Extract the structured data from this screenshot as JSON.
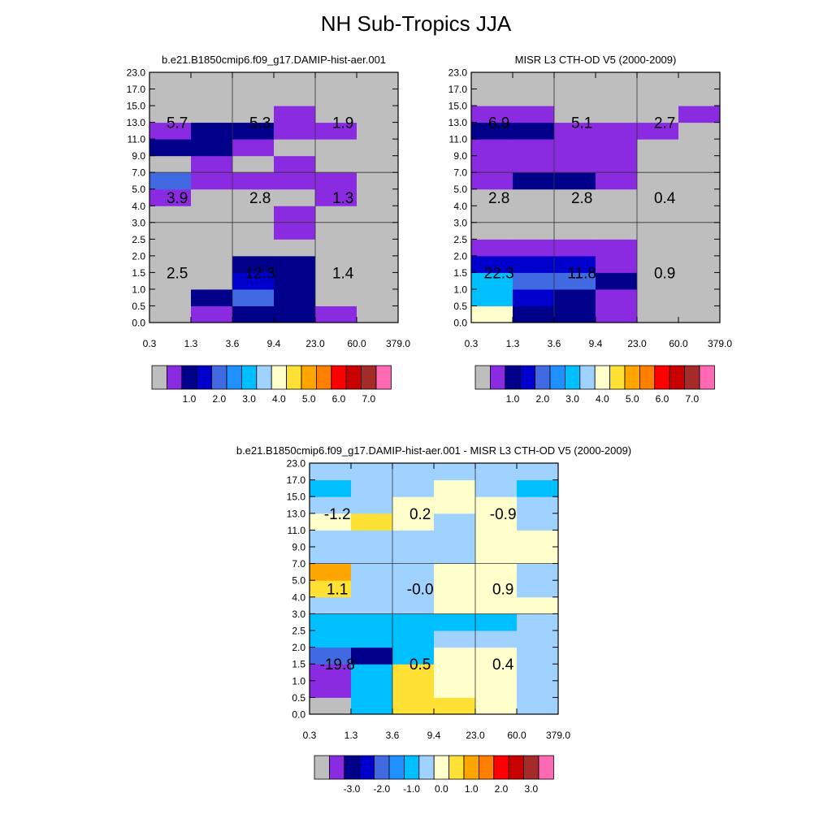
{
  "figure": {
    "title": "NH Sub-Tropics JJA"
  },
  "colors": {
    "palette": [
      "#BEBEBE",
      "#8A2BE2",
      "#00008B",
      "#0000CD",
      "#4169E1",
      "#1E90FF",
      "#00BFFF",
      "#A0D2FF",
      "#FFFFCC",
      "#FFE135",
      "#FFA500",
      "#FF7F00",
      "#FF0000",
      "#C80000",
      "#A52A2A",
      "#FF69B4"
    ],
    "grid_line": "#333333"
  },
  "chart_data": [
    {
      "type": "heatmap",
      "id": "model",
      "title": "b.e21.B1850cmip6.f09_g17.DAMIP-hist-aer.001",
      "x_ticks": [
        "0.3",
        "1.3",
        "3.6",
        "9.4",
        "23.0",
        "60.0",
        "379.0"
      ],
      "y_ticks": [
        "0.0",
        "0.5",
        "1.0",
        "1.5",
        "2.0",
        "2.5",
        "3.0",
        "4.0",
        "5.0",
        "7.0",
        "9.0",
        "11.0",
        "13.0",
        "15.0",
        "17.0",
        "23.0"
      ],
      "grid": true,
      "cell_colors": [
        [
          0,
          1,
          2,
          2,
          1,
          0
        ],
        [
          0,
          2,
          4,
          2,
          0,
          0
        ],
        [
          0,
          0,
          3,
          2,
          0,
          0
        ],
        [
          0,
          0,
          2,
          2,
          0,
          0
        ],
        [
          0,
          0,
          0,
          0,
          0,
          0
        ],
        [
          0,
          0,
          0,
          1,
          0,
          0
        ],
        [
          0,
          0,
          0,
          1,
          0,
          0
        ],
        [
          1,
          0,
          0,
          0,
          1,
          0
        ],
        [
          4,
          1,
          1,
          1,
          1,
          0
        ],
        [
          0,
          1,
          0,
          1,
          0,
          0
        ],
        [
          2,
          2,
          1,
          0,
          0,
          0
        ],
        [
          1,
          2,
          2,
          1,
          1,
          0
        ],
        [
          0,
          0,
          0,
          1,
          0,
          0
        ],
        [
          0,
          0,
          0,
          0,
          0,
          0
        ],
        [
          0,
          0,
          0,
          0,
          0,
          0
        ]
      ],
      "annotations": [
        {
          "x": 0.67,
          "y": 12.0,
          "text": "5.7"
        },
        {
          "x": 2.67,
          "y": 12.0,
          "text": "5.3"
        },
        {
          "x": 4.67,
          "y": 12.0,
          "text": "1.9"
        },
        {
          "x": 0.67,
          "y": 7.5,
          "text": "3.9"
        },
        {
          "x": 2.67,
          "y": 7.5,
          "text": "2.8"
        },
        {
          "x": 4.67,
          "y": 7.5,
          "text": "1.3"
        },
        {
          "x": 0.67,
          "y": 3.0,
          "text": "2.5"
        },
        {
          "x": 2.67,
          "y": 3.0,
          "text": "12.3"
        },
        {
          "x": 4.67,
          "y": 3.0,
          "text": "1.4"
        }
      ],
      "colorbar_labels": [
        "1.0",
        "2.0",
        "3.0",
        "4.0",
        "5.0",
        "6.0",
        "7.0"
      ]
    },
    {
      "type": "heatmap",
      "id": "obs",
      "title": "MISR L3 CTH-OD V5 (2000-2009)",
      "x_ticks": [
        "0.3",
        "1.3",
        "3.6",
        "9.4",
        "23.0",
        "60.0",
        "379.0"
      ],
      "y_ticks": [
        "0.0",
        "0.5",
        "1.0",
        "1.5",
        "2.0",
        "2.5",
        "3.0",
        "4.0",
        "5.0",
        "7.0",
        "9.0",
        "11.0",
        "13.0",
        "15.0",
        "17.0",
        "23.0"
      ],
      "grid": true,
      "cell_colors": [
        [
          8,
          2,
          2,
          1,
          0,
          0
        ],
        [
          6,
          3,
          2,
          1,
          0,
          0
        ],
        [
          6,
          4,
          4,
          2,
          0,
          0
        ],
        [
          3,
          3,
          3,
          1,
          0,
          0
        ],
        [
          1,
          1,
          1,
          1,
          0,
          0
        ],
        [
          0,
          0,
          0,
          0,
          0,
          0
        ],
        [
          0,
          0,
          0,
          0,
          0,
          0
        ],
        [
          0,
          0,
          0,
          0,
          0,
          0
        ],
        [
          1,
          2,
          2,
          1,
          0,
          0
        ],
        [
          1,
          1,
          1,
          1,
          0,
          0
        ],
        [
          1,
          1,
          1,
          1,
          0,
          0
        ],
        [
          2,
          2,
          1,
          1,
          1,
          0
        ],
        [
          1,
          1,
          0,
          0,
          0,
          1
        ],
        [
          0,
          0,
          0,
          0,
          0,
          0
        ],
        [
          0,
          0,
          0,
          0,
          0,
          0
        ]
      ],
      "annotations": [
        {
          "x": 0.67,
          "y": 12.0,
          "text": "6.9"
        },
        {
          "x": 2.67,
          "y": 12.0,
          "text": "5.1"
        },
        {
          "x": 4.67,
          "y": 12.0,
          "text": "2.7"
        },
        {
          "x": 0.67,
          "y": 7.5,
          "text": "2.8"
        },
        {
          "x": 2.67,
          "y": 7.5,
          "text": "2.8"
        },
        {
          "x": 4.67,
          "y": 7.5,
          "text": "0.4"
        },
        {
          "x": 0.67,
          "y": 3.0,
          "text": "22.3"
        },
        {
          "x": 2.67,
          "y": 3.0,
          "text": "11.8"
        },
        {
          "x": 4.67,
          "y": 3.0,
          "text": "0.9"
        }
      ],
      "colorbar_labels": [
        "1.0",
        "2.0",
        "3.0",
        "4.0",
        "5.0",
        "6.0",
        "7.0"
      ]
    },
    {
      "type": "heatmap",
      "id": "difference",
      "title": "b.e21.B1850cmip6.f09_g17.DAMIP-hist-aer.001 - MISR L3 CTH-OD V5 (2000-2009)",
      "x_ticks": [
        "0.3",
        "1.3",
        "3.6",
        "9.4",
        "23.0",
        "60.0",
        "379.0"
      ],
      "y_ticks": [
        "0.0",
        "0.5",
        "1.0",
        "1.5",
        "2.0",
        "2.5",
        "3.0",
        "4.0",
        "5.0",
        "7.0",
        "9.0",
        "11.0",
        "13.0",
        "15.0",
        "17.0",
        "23.0"
      ],
      "grid": true,
      "cell_colors": [
        [
          0,
          6,
          9,
          9,
          8,
          7
        ],
        [
          1,
          6,
          9,
          8,
          8,
          7
        ],
        [
          1,
          6,
          9,
          8,
          8,
          7
        ],
        [
          4,
          2,
          6,
          8,
          8,
          7
        ],
        [
          6,
          6,
          6,
          7,
          7,
          7
        ],
        [
          6,
          6,
          6,
          6,
          6,
          7
        ],
        [
          7,
          7,
          7,
          8,
          8,
          8
        ],
        [
          9,
          7,
          7,
          8,
          8,
          7
        ],
        [
          10,
          7,
          7,
          8,
          8,
          7
        ],
        [
          7,
          7,
          7,
          7,
          8,
          8
        ],
        [
          7,
          7,
          7,
          7,
          8,
          8
        ],
        [
          8,
          9,
          8,
          7,
          8,
          7
        ],
        [
          7,
          7,
          8,
          8,
          8,
          7
        ],
        [
          6,
          7,
          7,
          8,
          7,
          6
        ],
        [
          7,
          7,
          7,
          7,
          7,
          7
        ]
      ],
      "annotations": [
        {
          "x": 0.67,
          "y": 12.0,
          "text": "-1.2"
        },
        {
          "x": 2.67,
          "y": 12.0,
          "text": "0.2"
        },
        {
          "x": 4.67,
          "y": 12.0,
          "text": "-0.9"
        },
        {
          "x": 0.67,
          "y": 7.5,
          "text": "1.1"
        },
        {
          "x": 2.67,
          "y": 7.5,
          "text": "-0.0"
        },
        {
          "x": 4.67,
          "y": 7.5,
          "text": "0.9"
        },
        {
          "x": 0.67,
          "y": 3.0,
          "text": "-19.8"
        },
        {
          "x": 2.67,
          "y": 3.0,
          "text": "0.5"
        },
        {
          "x": 4.67,
          "y": 3.0,
          "text": "0.4"
        }
      ],
      "colorbar_labels": [
        "-3.0",
        "-2.0",
        "-1.0",
        "0.0",
        "1.0",
        "2.0",
        "3.0"
      ]
    }
  ]
}
